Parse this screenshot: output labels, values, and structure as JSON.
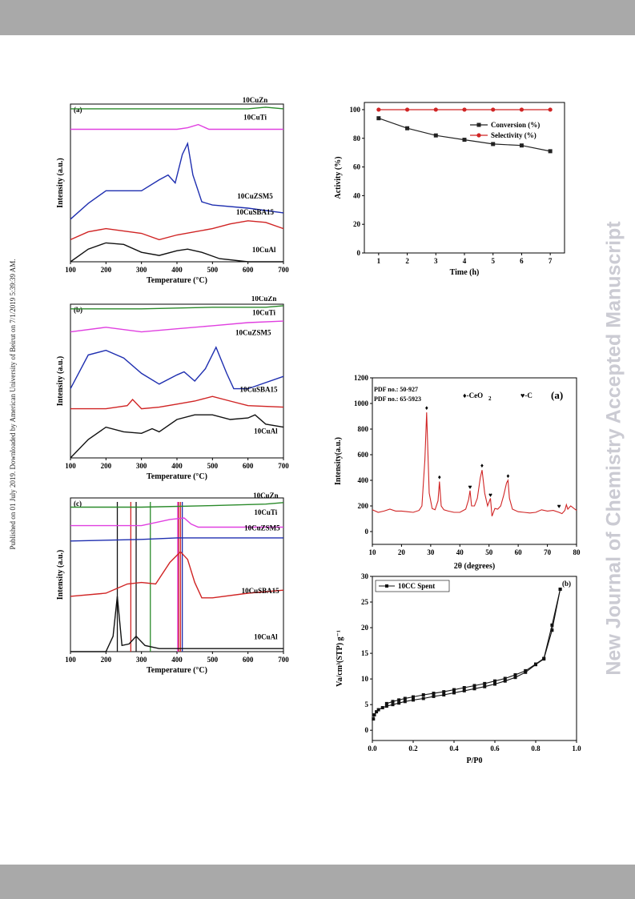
{
  "sidebar_left_text": "Published on 01 July 2019. Downloaded by American University of Beirut on 7/1/2019 5:39:39 AM.",
  "watermark": "New Journal of Chemistry Accepted Manuscript",
  "colors": {
    "band": "#a9a9a9",
    "watermark": "#cbcbd3"
  },
  "chart_data": [
    {
      "type": "line",
      "panel_label": "(a)",
      "xlabel": "Temperature (°C)",
      "ylabel": "Intensity (a.u.)",
      "xlim": [
        100,
        700
      ],
      "xticks": [
        "100",
        "200",
        "300",
        "400",
        "500",
        "600",
        "700"
      ],
      "series": [
        {
          "name": "10CuZn",
          "color": "#2a8a2a",
          "x": [
            100,
            200,
            300,
            400,
            500,
            600,
            650,
            700
          ],
          "values": [
            0.97,
            0.97,
            0.97,
            0.97,
            0.97,
            0.97,
            0.98,
            0.97
          ]
        },
        {
          "name": "10CuTi",
          "color": "#e040e0",
          "x": [
            100,
            200,
            300,
            400,
            430,
            460,
            490,
            550,
            700
          ],
          "values": [
            0.84,
            0.84,
            0.84,
            0.84,
            0.85,
            0.87,
            0.84,
            0.84,
            0.84
          ]
        },
        {
          "name": "10CuZSM5",
          "color": "#1f2fb0",
          "x": [
            100,
            150,
            200,
            250,
            300,
            350,
            375,
            395,
            415,
            430,
            445,
            470,
            500,
            600,
            700
          ],
          "values": [
            0.27,
            0.37,
            0.45,
            0.45,
            0.45,
            0.52,
            0.55,
            0.5,
            0.68,
            0.75,
            0.55,
            0.38,
            0.36,
            0.34,
            0.31
          ]
        },
        {
          "name": "10CuSBA15",
          "color": "#d02424",
          "x": [
            100,
            150,
            200,
            300,
            350,
            400,
            500,
            550,
            600,
            650,
            700
          ],
          "values": [
            0.14,
            0.19,
            0.21,
            0.18,
            0.14,
            0.17,
            0.21,
            0.24,
            0.26,
            0.25,
            0.21
          ]
        },
        {
          "name": "10CuAl",
          "color": "#111111",
          "x": [
            100,
            150,
            200,
            250,
            300,
            350,
            400,
            430,
            470,
            520,
            600,
            700
          ],
          "values": [
            0.0,
            0.08,
            0.12,
            0.11,
            0.06,
            0.04,
            0.07,
            0.08,
            0.06,
            0.02,
            0.0,
            0.0
          ]
        }
      ]
    },
    {
      "type": "line",
      "panel_label": "(b)",
      "xlabel": "Temperature (°C)",
      "ylabel": "Intensity (a.u.)",
      "xlim": [
        100,
        700
      ],
      "xticks": [
        "100",
        "200",
        "300",
        "400",
        "500",
        "600",
        "700"
      ],
      "series": [
        {
          "name": "10CuZn",
          "color": "#2a8a2a",
          "x": [
            100,
            300,
            500,
            650,
            700
          ],
          "values": [
            0.97,
            0.97,
            0.98,
            0.98,
            0.99
          ]
        },
        {
          "name": "10CuTi",
          "color": "#e040e0",
          "x": [
            100,
            200,
            300,
            400,
            500,
            600,
            700
          ],
          "values": [
            0.82,
            0.85,
            0.82,
            0.84,
            0.86,
            0.88,
            0.89
          ]
        },
        {
          "name": "10CuZSM5",
          "color": "#1f2fb0",
          "x": [
            100,
            150,
            200,
            250,
            300,
            350,
            400,
            420,
            450,
            480,
            510,
            540,
            560,
            600,
            700
          ],
          "values": [
            0.45,
            0.67,
            0.7,
            0.65,
            0.55,
            0.48,
            0.54,
            0.56,
            0.5,
            0.58,
            0.72,
            0.55,
            0.45,
            0.45,
            0.53
          ]
        },
        {
          "name": "10CuSBA15",
          "color": "#d02424",
          "x": [
            100,
            200,
            260,
            275,
            300,
            350,
            400,
            450,
            500,
            550,
            600,
            700
          ],
          "values": [
            0.32,
            0.32,
            0.34,
            0.38,
            0.32,
            0.33,
            0.35,
            0.37,
            0.4,
            0.37,
            0.34,
            0.33
          ]
        },
        {
          "name": "10CuAl",
          "color": "#111111",
          "x": [
            100,
            150,
            200,
            250,
            300,
            330,
            350,
            400,
            450,
            500,
            550,
            600,
            620,
            650,
            700
          ],
          "values": [
            0.0,
            0.12,
            0.2,
            0.17,
            0.16,
            0.19,
            0.17,
            0.25,
            0.28,
            0.28,
            0.25,
            0.26,
            0.28,
            0.22,
            0.2
          ]
        }
      ]
    },
    {
      "type": "line",
      "panel_label": "(c)",
      "xlabel": "Temperature (°C)",
      "ylabel": "Intensity (a.u.)",
      "xlim": [
        100,
        700
      ],
      "xticks": [
        "100",
        "200",
        "300",
        "400",
        "500",
        "600",
        "700"
      ],
      "series": [
        {
          "name": "10CuZn",
          "color": "#2a8a2a",
          "x": [
            100,
            300,
            500,
            650,
            700
          ],
          "values": [
            0.94,
            0.94,
            0.95,
            0.96,
            0.97
          ]
        },
        {
          "name": "10CuTi",
          "color": "#e040e0",
          "x": [
            100,
            300,
            380,
            420,
            440,
            460,
            500,
            700
          ],
          "values": [
            0.82,
            0.82,
            0.86,
            0.87,
            0.83,
            0.81,
            0.81,
            0.81
          ]
        },
        {
          "name": "10CuZSM5",
          "color": "#1f2fb0",
          "x": [
            100,
            300,
            400,
            500,
            700
          ],
          "values": [
            0.72,
            0.73,
            0.74,
            0.74,
            0.74
          ]
        },
        {
          "name": "10CuSBA15",
          "color": "#d02424",
          "x": [
            100,
            200,
            260,
            300,
            340,
            380,
            410,
            430,
            450,
            470,
            500,
            600,
            700
          ],
          "values": [
            0.36,
            0.38,
            0.44,
            0.45,
            0.44,
            0.58,
            0.65,
            0.6,
            0.45,
            0.35,
            0.35,
            0.38,
            0.4
          ]
        },
        {
          "name": "10CuAl",
          "color": "#111111",
          "x": [
            100,
            200,
            220,
            232,
            245,
            265,
            285,
            310,
            350,
            500,
            700
          ],
          "values": [
            0.0,
            0.0,
            0.1,
            0.36,
            0.04,
            0.05,
            0.1,
            0.04,
            0.02,
            0.02,
            0.02
          ]
        }
      ],
      "markers": [
        {
          "x": 232,
          "color": "#111111"
        },
        {
          "x": 285,
          "color": "#111111"
        },
        {
          "x": 270,
          "color": "#d02424"
        },
        {
          "x": 405,
          "color": "#d02424"
        },
        {
          "x": 410,
          "color": "#d02424"
        },
        {
          "x": 402,
          "color": "#e040e0"
        },
        {
          "x": 415,
          "color": "#1f2fb0"
        },
        {
          "x": 325,
          "color": "#2a8a2a"
        }
      ]
    },
    {
      "type": "line",
      "xlabel": "Time (h)",
      "ylabel": "Activity (%)",
      "xlim": [
        0.5,
        7.5
      ],
      "ylim": [
        0,
        105
      ],
      "xticks": [
        "1",
        "2",
        "3",
        "4",
        "5",
        "6",
        "7"
      ],
      "yticks": [
        "0",
        "20",
        "40",
        "60",
        "80",
        "100"
      ],
      "series": [
        {
          "name": "Conversion (%)",
          "color": "#222222",
          "marker": "square",
          "x": [
            1,
            2,
            3,
            4,
            5,
            6,
            7
          ],
          "values": [
            94,
            87,
            82,
            79,
            76,
            75,
            71
          ]
        },
        {
          "name": "Selectivity (%)",
          "color": "#d02424",
          "marker": "circle",
          "x": [
            1,
            2,
            3,
            4,
            5,
            6,
            7
          ],
          "values": [
            100,
            100,
            100,
            100,
            100,
            100,
            100
          ]
        }
      ]
    },
    {
      "type": "line",
      "panel_label": "(a)",
      "xlabel": "2θ (degrees)",
      "ylabel": "Intensity(a.u.)",
      "xlim": [
        10,
        80
      ],
      "ylim": [
        -100,
        1200
      ],
      "xticks": [
        "10",
        "20",
        "30",
        "40",
        "50",
        "60",
        "70",
        "80"
      ],
      "yticks": [
        "0",
        "200",
        "400",
        "600",
        "800",
        "1000",
        "1200"
      ],
      "pdf_lines": [
        "PDF no.: 50-927",
        "PDF no.: 65-5923"
      ],
      "legend_marks": [
        "♦-CeO",
        "2",
        "♥-C"
      ],
      "series": [
        {
          "name": "",
          "color": "#d02424",
          "x": [
            10,
            12,
            14,
            16,
            18,
            20,
            22,
            24,
            26,
            27,
            28,
            28.6,
            29.5,
            30.5,
            31.5,
            32.5,
            33,
            33.6,
            34.5,
            36,
            38,
            40,
            42,
            43,
            43.5,
            44,
            45,
            46,
            47,
            47.6,
            48.5,
            49.5,
            50.5,
            51,
            52,
            53,
            54,
            55,
            56,
            56.5,
            57,
            58,
            60,
            62,
            64,
            66,
            68,
            70,
            72,
            74,
            75,
            76,
            76.5,
            77,
            78,
            80
          ],
          "values": [
            170,
            150,
            160,
            175,
            160,
            160,
            155,
            150,
            165,
            200,
            560,
            930,
            300,
            180,
            170,
            240,
            390,
            200,
            170,
            160,
            150,
            150,
            175,
            250,
            320,
            200,
            200,
            260,
            420,
            480,
            300,
            200,
            260,
            120,
            180,
            175,
            200,
            280,
            380,
            400,
            260,
            175,
            155,
            150,
            145,
            150,
            170,
            160,
            165,
            150,
            140,
            165,
            210,
            175,
            200,
            165
          ]
        }
      ],
      "peak_markers": [
        {
          "x": 28.6,
          "y": 950,
          "symbol": "♦"
        },
        {
          "x": 33,
          "y": 410,
          "symbol": "♦"
        },
        {
          "x": 43.5,
          "y": 330,
          "symbol": "♥"
        },
        {
          "x": 47.6,
          "y": 500,
          "symbol": "♦"
        },
        {
          "x": 50.5,
          "y": 270,
          "symbol": "♥"
        },
        {
          "x": 56.5,
          "y": 420,
          "symbol": "♦"
        },
        {
          "x": 74,
          "y": 180,
          "symbol": "♥"
        }
      ]
    },
    {
      "type": "line",
      "panel_label": "(b)",
      "xlabel": "P/P0",
      "ylabel": "Va/cm³(STP) g⁻¹",
      "xlim": [
        0,
        1
      ],
      "ylim": [
        -2,
        30
      ],
      "xticks": [
        "0.0",
        "0.2",
        "0.4",
        "0.6",
        "0.8",
        "1.0"
      ],
      "yticks": [
        "0",
        "5",
        "10",
        "15",
        "20",
        "25",
        "30"
      ],
      "series": [
        {
          "name": "10CC Spent",
          "color": "#111111",
          "marker": "square",
          "x": [
            0.005,
            0.01,
            0.02,
            0.03,
            0.05,
            0.07,
            0.1,
            0.13,
            0.16,
            0.2,
            0.25,
            0.3,
            0.35,
            0.4,
            0.45,
            0.5,
            0.55,
            0.6,
            0.65,
            0.7,
            0.75,
            0.8,
            0.84,
            0.88,
            0.92
          ],
          "values": [
            2.2,
            3.0,
            3.6,
            4.0,
            4.4,
            4.7,
            5.0,
            5.3,
            5.6,
            5.9,
            6.2,
            6.6,
            6.9,
            7.3,
            7.7,
            8.1,
            8.5,
            9.0,
            9.6,
            10.3,
            11.3,
            12.8,
            13.9,
            19.5,
            27.5
          ]
        },
        {
          "name": "",
          "color": "#111111",
          "marker": "square",
          "x": [
            0.92,
            0.88,
            0.84,
            0.8,
            0.75,
            0.7,
            0.65,
            0.6,
            0.55,
            0.5,
            0.45,
            0.4,
            0.35,
            0.3,
            0.25,
            0.2,
            0.16,
            0.13,
            0.1,
            0.07
          ],
          "values": [
            27.5,
            20.5,
            14.0,
            12.9,
            11.6,
            10.8,
            10.1,
            9.6,
            9.1,
            8.7,
            8.3,
            7.9,
            7.5,
            7.2,
            6.9,
            6.5,
            6.2,
            5.9,
            5.6,
            5.2
          ]
        }
      ]
    }
  ]
}
